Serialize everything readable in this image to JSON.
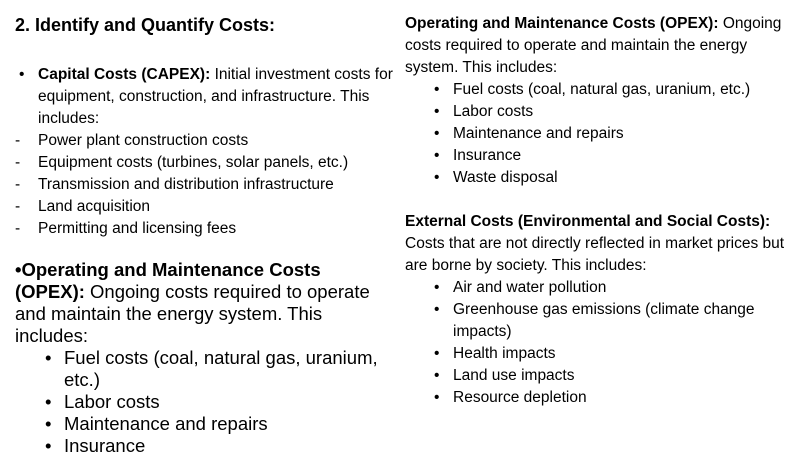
{
  "heading": "2. Identify and Quantify Costs:",
  "left": {
    "capex": {
      "label": "Capital Costs (CAPEX):",
      "text": "Initial investment costs for equipment, construction, and infrastructure. This includes:",
      "items": [
        "Power plant construction costs",
        "Equipment costs (turbines, solar panels, etc.)",
        "Transmission and distribution infrastructure",
        "Land acquisition",
        "Permitting and licensing fees"
      ]
    },
    "opex": {
      "label": "•Operating and Maintenance Costs (OPEX):",
      "text": "Ongoing costs required to operate and maintain the energy system. This includes:",
      "items": [
        "Fuel costs (coal, natural gas, uranium, etc.)",
        "Labor costs",
        "Maintenance and repairs",
        "Insurance"
      ]
    }
  },
  "right": {
    "opex": {
      "label": "Operating and Maintenance Costs (OPEX):",
      "text": "Ongoing costs required to operate and maintain the energy system. This includes:",
      "items": [
        "Fuel costs (coal, natural gas, uranium, etc.)",
        "Labor costs",
        "Maintenance and repairs",
        "Insurance",
        "Waste disposal"
      ]
    },
    "external": {
      "label": "External Costs (Environmental and Social Costs):",
      "text": "Costs that are not directly reflected in market prices but are borne by society. This includes:",
      "items": [
        "Air and water pollution",
        "Greenhouse gas emissions (climate change impacts)",
        "Health impacts",
        "Land use impacts",
        "Resource depletion"
      ]
    }
  }
}
